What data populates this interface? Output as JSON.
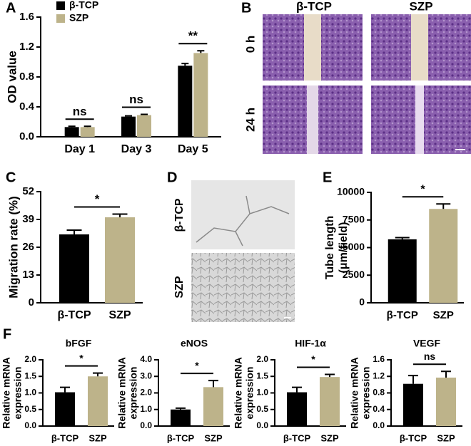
{
  "chart_data": [
    {
      "type": "grouped-bar",
      "panel": "A",
      "y_label": [
        "OD value"
      ],
      "categories": [
        "Day 1",
        "Day 3",
        "Day 5"
      ],
      "series": [
        {
          "name": "β-TCP",
          "color": "#000000",
          "values": [
            0.13,
            0.27,
            0.95
          ],
          "errors": [
            0.01,
            0.01,
            0.03
          ]
        },
        {
          "name": "SZP",
          "color": "#bdb38a",
          "values": [
            0.13,
            0.29,
            1.12
          ],
          "errors": [
            0.01,
            0.01,
            0.03
          ]
        }
      ],
      "annotations": [
        "ns",
        "ns",
        "**"
      ],
      "ylim": [
        0,
        1.6
      ],
      "yticks": [
        {
          "value": 0,
          "label": "0.0"
        },
        0.4,
        0.8,
        1.2,
        1.6
      ]
    },
    {
      "type": "bar",
      "panel": "C",
      "y_label": [
        "Migration rate (%)"
      ],
      "categories": [
        "β-TCP",
        "SZP"
      ],
      "values": [
        32,
        40
      ],
      "errors": [
        2,
        1.5
      ],
      "colors": [
        "#000000",
        "#bdb38a"
      ],
      "significance": "*",
      "ylim": [
        0,
        52
      ],
      "yticks": [
        0,
        13,
        26,
        39,
        52
      ]
    },
    {
      "type": "bar",
      "panel": "E",
      "y_label": [
        "Tube length",
        "(μm/field)"
      ],
      "categories": [
        "β-TCP",
        "SZP"
      ],
      "values": [
        5750,
        8500
      ],
      "errors": [
        150,
        450
      ],
      "colors": [
        "#000000",
        "#bdb38a"
      ],
      "significance": "*",
      "ylim": [
        0,
        10000
      ],
      "yticks": [
        0,
        2500,
        5000,
        7500,
        10000
      ]
    },
    {
      "type": "bar",
      "panel": "F",
      "title": "bFGF",
      "y_label": [
        "Relative mRNA",
        "expression"
      ],
      "categories": [
        "β-TCP",
        "SZP"
      ],
      "values": [
        1.02,
        1.5
      ],
      "errors": [
        0.15,
        0.1
      ],
      "colors": [
        "#000000",
        "#bdb38a"
      ],
      "significance": "*",
      "ylim": [
        0,
        2.0
      ],
      "yticks": [
        {
          "value": 0,
          "label": "0.0"
        },
        0.5,
        {
          "value": 1,
          "label": "1.0"
        },
        1.5,
        {
          "value": 2,
          "label": "2.0"
        }
      ]
    },
    {
      "type": "bar",
      "title": "eNOS",
      "y_label": [
        "Relative mRNA",
        "expression"
      ],
      "categories": [
        "β-TCP",
        "SZP"
      ],
      "values": [
        1.0,
        2.35
      ],
      "errors": [
        0.08,
        0.4
      ],
      "colors": [
        "#000000",
        "#bdb38a"
      ],
      "significance": "*",
      "ylim": [
        0,
        4.0
      ],
      "yticks": [
        {
          "value": 0,
          "label": "0.0"
        },
        {
          "value": 1,
          "label": "1.0"
        },
        {
          "value": 2,
          "label": "2.0"
        },
        {
          "value": 3,
          "label": "3.0"
        },
        {
          "value": 4,
          "label": "4.0"
        }
      ]
    },
    {
      "type": "bar",
      "title": "HIF-1α",
      "y_label": [
        "Relative mRNA",
        "expression"
      ],
      "categories": [
        "β-TCP",
        "SZP"
      ],
      "values": [
        1.02,
        1.48
      ],
      "errors": [
        0.15,
        0.08
      ],
      "colors": [
        "#000000",
        "#bdb38a"
      ],
      "significance": "*",
      "ylim": [
        0,
        2.0
      ],
      "yticks": [
        {
          "value": 0,
          "label": "0.0"
        },
        0.5,
        {
          "value": 1,
          "label": "1.0"
        },
        1.5,
        {
          "value": 2,
          "label": "2.0"
        }
      ]
    },
    {
      "type": "bar",
      "title": "VEGF",
      "y_label": [
        "Relative mRNA",
        "expression"
      ],
      "categories": [
        "β-TCP",
        "SZP"
      ],
      "values": [
        1.02,
        1.17
      ],
      "errors": [
        0.2,
        0.15
      ],
      "colors": [
        "#000000",
        "#bdb38a"
      ],
      "significance": "ns",
      "ylim": [
        0,
        1.6
      ],
      "yticks": [
        {
          "value": 0,
          "label": "0.0"
        },
        0.4,
        0.8,
        1.2,
        1.6
      ]
    }
  ],
  "panel_b": {
    "label": "B",
    "columns": [
      "β-TCP",
      "SZP"
    ],
    "rows": [
      "0 h",
      "24 h"
    ]
  },
  "panel_d": {
    "label": "D",
    "rows": [
      "β-TCP",
      "SZP"
    ]
  }
}
